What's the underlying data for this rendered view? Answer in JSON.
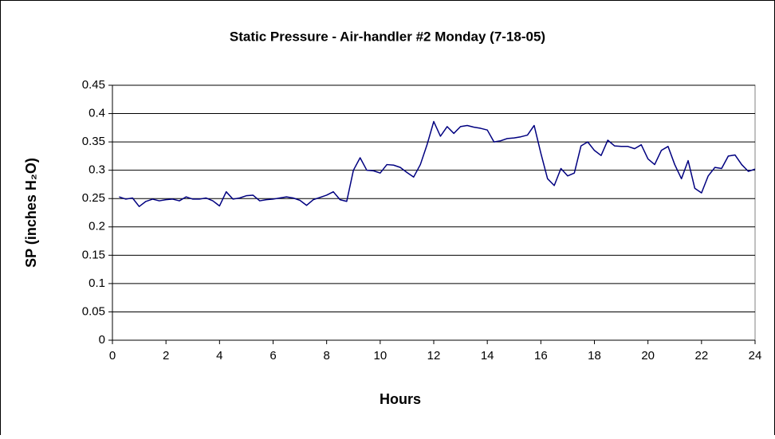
{
  "chart_data": {
    "type": "line",
    "title": "Static Pressure - Air-handler #2 Monday (7-18-05)",
    "xlabel": "Hours",
    "ylabel": "SP (inches H₂O)",
    "x": [
      0.25,
      0.5,
      0.75,
      1,
      1.25,
      1.5,
      1.75,
      2,
      2.25,
      2.5,
      2.75,
      3,
      3.25,
      3.5,
      3.75,
      4,
      4.25,
      4.5,
      4.75,
      5,
      5.25,
      5.5,
      5.75,
      6,
      6.25,
      6.5,
      6.75,
      7,
      7.25,
      7.5,
      7.75,
      8,
      8.25,
      8.5,
      8.75,
      9,
      9.25,
      9.5,
      9.75,
      10,
      10.25,
      10.5,
      10.75,
      11,
      11.25,
      11.5,
      11.75,
      12,
      12.25,
      12.5,
      12.75,
      13,
      13.25,
      13.5,
      13.75,
      14,
      14.25,
      14.5,
      14.75,
      15,
      15.25,
      15.5,
      15.75,
      16,
      16.25,
      16.5,
      16.75,
      17,
      17.25,
      17.5,
      17.75,
      18,
      18.25,
      18.5,
      18.75,
      19,
      19.25,
      19.5,
      19.75,
      20,
      20.25,
      20.5,
      20.75,
      21,
      21.25,
      21.5,
      21.75,
      22,
      22.25,
      22.5,
      22.75,
      23,
      23.25,
      23.5,
      23.75,
      24
    ],
    "series": [
      {
        "color": "#000080",
        "values": [
          0.253,
          0.249,
          0.251,
          0.236,
          0.245,
          0.249,
          0.246,
          0.248,
          0.249,
          0.246,
          0.253,
          0.249,
          0.249,
          0.251,
          0.246,
          0.237,
          0.262,
          0.249,
          0.251,
          0.255,
          0.256,
          0.246,
          0.248,
          0.249,
          0.251,
          0.253,
          0.251,
          0.247,
          0.238,
          0.248,
          0.252,
          0.256,
          0.262,
          0.248,
          0.245,
          0.3,
          0.322,
          0.3,
          0.299,
          0.295,
          0.31,
          0.309,
          0.305,
          0.296,
          0.288,
          0.31,
          0.345,
          0.386,
          0.36,
          0.377,
          0.365,
          0.377,
          0.379,
          0.376,
          0.374,
          0.371,
          0.35,
          0.352,
          0.356,
          0.357,
          0.359,
          0.362,
          0.379,
          0.33,
          0.285,
          0.273,
          0.303,
          0.29,
          0.295,
          0.343,
          0.35,
          0.335,
          0.326,
          0.353,
          0.343,
          0.342,
          0.342,
          0.338,
          0.345,
          0.32,
          0.31,
          0.335,
          0.342,
          0.31,
          0.285,
          0.317,
          0.268,
          0.26,
          0.29,
          0.305,
          0.303,
          0.325,
          0.327,
          0.31,
          0.298,
          0.302
        ]
      }
    ],
    "xlim": [
      0,
      24
    ],
    "xticks": [
      0,
      2,
      4,
      6,
      8,
      10,
      12,
      14,
      16,
      18,
      20,
      22,
      24
    ],
    "ylim": [
      0,
      0.45
    ],
    "yticks": [
      0,
      0.05,
      0.1,
      0.15,
      0.2,
      0.25,
      0.3,
      0.35,
      0.4,
      0.45
    ],
    "grid": true
  }
}
